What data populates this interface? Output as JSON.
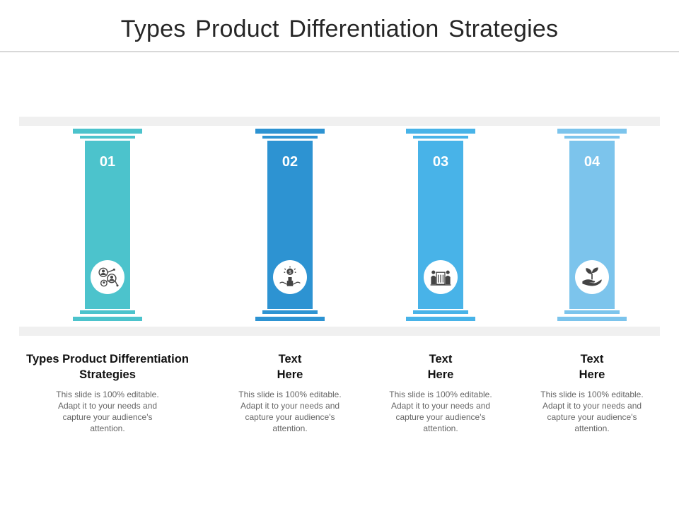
{
  "slide": {
    "title": "Types Product Differentiation Strategies"
  },
  "pillars": [
    {
      "number": "01",
      "color": "#4cc3cc",
      "icon": "user-network-icon",
      "heading": "Types Product Differentiation Strategies",
      "description": "This slide is 100% editable. Adapt it to your needs and capture your audience's attention."
    },
    {
      "number": "02",
      "color": "#2d93d2",
      "icon": "money-lightbulb-handshake-icon",
      "heading": "Text Here",
      "description": "This slide is 100% editable. Adapt it to your needs and capture your audience's attention."
    },
    {
      "number": "03",
      "color": "#48b3e8",
      "icon": "people-building-icon",
      "heading": "Text Here",
      "description": "This slide is 100% editable. Adapt it to your needs and capture your audience's attention."
    },
    {
      "number": "04",
      "color": "#7cc4ec",
      "icon": "plant-in-hand-icon",
      "heading": "Text Here",
      "description": "This slide is 100% editable. Adapt it to your needs and capture your audience's attention."
    }
  ]
}
